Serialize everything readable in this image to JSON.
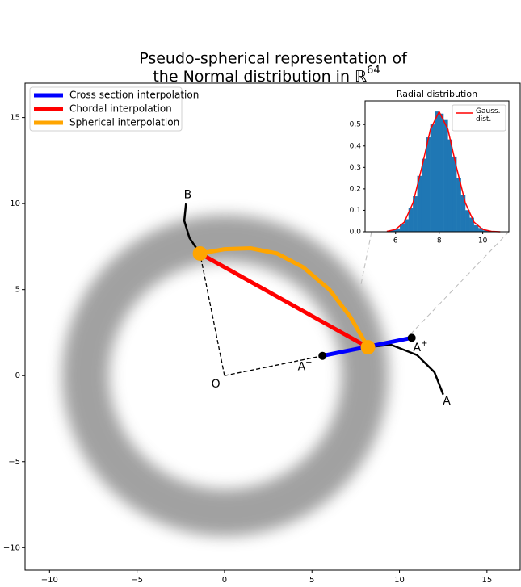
{
  "chart_data": [
    {
      "type": "line",
      "title": [
        "Pseudo-spherical representation of",
        "the Normal distribution in ℝ"
      ],
      "title_exponent": "64",
      "xlim": [
        -11.4,
        16.9
      ],
      "ylim": [
        -11.3,
        17.0
      ],
      "xticks": [
        {
          "value": -10,
          "label": "−10"
        },
        {
          "value": -5,
          "label": "−5"
        },
        0,
        5,
        10,
        15
      ],
      "yticks": [
        {
          "value": -10,
          "label": "−10"
        },
        {
          "value": -5,
          "label": "−5"
        },
        0,
        5,
        10,
        15
      ],
      "legend": "upper left",
      "series": [
        {
          "name": "Cross section interpolation",
          "color": "#0000ff",
          "x": [
            5.6,
            10.7
          ],
          "y": [
            1.15,
            2.2
          ]
        },
        {
          "name": "Chordal interpolation",
          "color": "#ff0000",
          "x": [
            -1.4,
            8.2
          ],
          "y": [
            7.1,
            1.65
          ]
        },
        {
          "name": "Spherical interpolation",
          "color": "#ffa500",
          "x": [
            -1.4,
            0,
            1.5,
            3,
            4.5,
            6,
            7.2,
            8.2
          ],
          "y": [
            7.1,
            7.35,
            7.4,
            7.1,
            6.3,
            5.0,
            3.4,
            1.65
          ]
        }
      ],
      "arrows": [
        {
          "color": "#000000",
          "x": [
            -2.2,
            -2.3,
            -2.0,
            -1.4
          ],
          "y": [
            10.0,
            9.0,
            8.0,
            7.1
          ]
        },
        {
          "color": "#000000",
          "x": [
            12.5,
            12.0,
            11.0,
            9.5,
            8.2
          ],
          "y": [
            -1.1,
            0.2,
            1.2,
            1.8,
            1.65
          ]
        }
      ],
      "dashed": [
        {
          "color": "#000000",
          "x": [
            0,
            -1.4
          ],
          "y": [
            0,
            7.1
          ]
        },
        {
          "color": "#000000",
          "x": [
            0,
            5.6
          ],
          "y": [
            0,
            1.15
          ]
        }
      ],
      "points": [
        {
          "x": -1.4,
          "y": 7.1,
          "color": "#ffa500",
          "size": 9
        },
        {
          "x": 8.2,
          "y": 1.65,
          "color": "#ffa500",
          "size": 9
        },
        {
          "x": 5.6,
          "y": 1.15,
          "color": "#000000",
          "size": 5
        },
        {
          "x": 10.7,
          "y": 2.2,
          "color": "#000000",
          "size": 5
        }
      ],
      "labels": [
        {
          "text": "O",
          "x": -0.5,
          "y": -0.5
        },
        {
          "text": "A",
          "x": 12.7,
          "y": -1.5
        },
        {
          "text": "B",
          "x": -2.1,
          "y": 10.5
        },
        {
          "text": "A",
          "superscript": "+",
          "x": 11.2,
          "y": 1.6
        },
        {
          "text": "A",
          "superscript": "−",
          "x": 4.6,
          "y": 0.5
        }
      ]
    },
    {
      "type": "histogram",
      "title": "Radial distribution",
      "xlim": [
        4.6,
        11.2
      ],
      "ylim": [
        0,
        0.61
      ],
      "xticks": [
        6,
        8,
        10
      ],
      "yticks": [
        {
          "value": 0,
          "label": "0.0"
        },
        {
          "value": 0.1,
          "label": "0.1"
        },
        {
          "value": 0.2,
          "label": "0.2"
        },
        {
          "value": 0.3,
          "label": "0.3"
        },
        {
          "value": 0.4,
          "label": "0.4"
        },
        {
          "value": 0.5,
          "label": "0.5"
        }
      ],
      "color": "#1f77b4",
      "bins": [
        5.6,
        5.8,
        6.0,
        6.2,
        6.4,
        6.6,
        6.8,
        7.0,
        7.2,
        7.4,
        7.6,
        7.8,
        8.0,
        8.2,
        8.4,
        8.6,
        8.8,
        9.0,
        9.2,
        9.4,
        9.6,
        9.8,
        10.0,
        10.2,
        10.4
      ],
      "values": [
        0.003,
        0.008,
        0.015,
        0.034,
        0.058,
        0.11,
        0.165,
        0.26,
        0.34,
        0.44,
        0.5,
        0.56,
        0.55,
        0.52,
        0.43,
        0.35,
        0.25,
        0.17,
        0.1,
        0.065,
        0.03,
        0.017,
        0.006,
        0.003
      ],
      "curve": {
        "name": "Gauss. dist.",
        "color": "#ff0000",
        "x": [
          5.6,
          6.0,
          6.4,
          6.8,
          7.2,
          7.6,
          8.0,
          8.4,
          8.8,
          9.2,
          9.6,
          10.0,
          10.4,
          10.8
        ],
        "y": [
          0.002,
          0.011,
          0.045,
          0.135,
          0.298,
          0.478,
          0.56,
          0.478,
          0.298,
          0.135,
          0.045,
          0.011,
          0.002,
          0.0
        ]
      }
    }
  ]
}
